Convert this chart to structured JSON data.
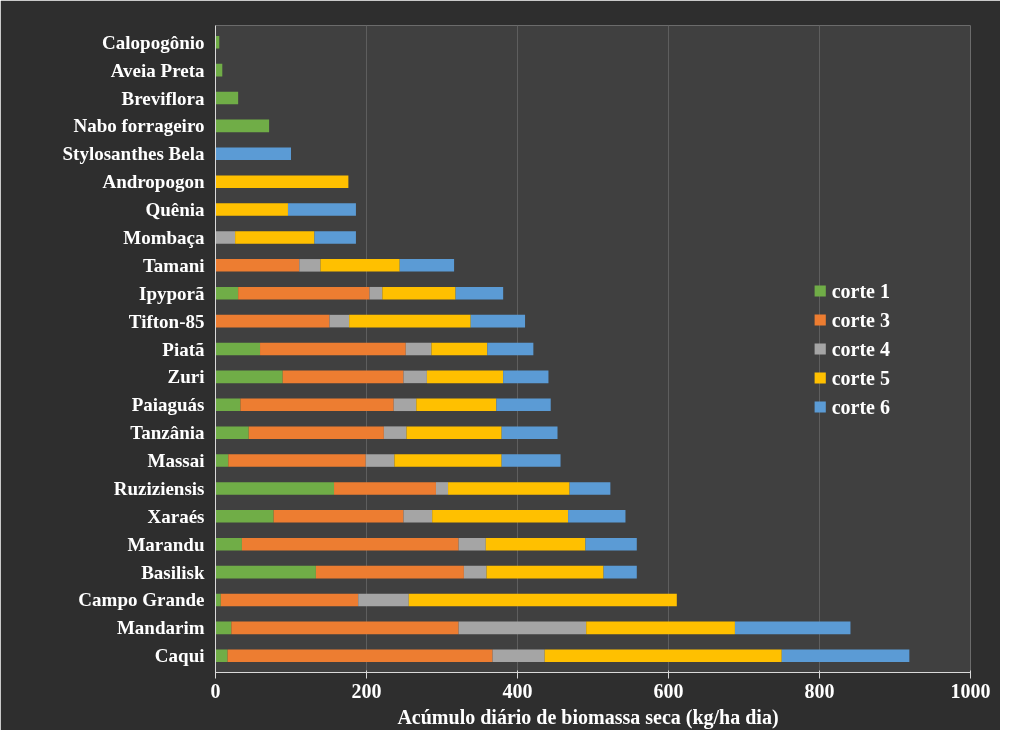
{
  "chart_data": {
    "type": "bar",
    "orientation": "horizontal",
    "stacked": true,
    "xlabel": "Acúmulo  diário  de biomassa seca (kg/ha dia)",
    "categories": [
      "Calopogônio",
      "Aveia Preta",
      "Breviflora",
      "Nabo forrageiro",
      "Stylosanthes Bela",
      "Andropogon",
      "Quênia",
      "Mombaça",
      "Tamani",
      "Ipyporã",
      "Tifton-85",
      "Piatã",
      "Zuri",
      "Paiaguás",
      "Tanzânia",
      "Massai",
      "Ruziziensis",
      "Xaraés",
      "Marandu",
      "Basilisk",
      "Campo Grande",
      "Mandarim",
      "Caqui"
    ],
    "series": [
      {
        "name": "corte 1",
        "color": "#70ad47",
        "values": [
          5,
          9,
          30,
          71,
          null,
          null,
          null,
          null,
          null,
          30,
          null,
          59,
          89,
          33,
          44,
          17,
          157,
          77,
          35,
          133,
          7,
          21,
          16
        ]
      },
      {
        "name": "corte 3",
        "color": "#ed7d31",
        "values": [
          null,
          null,
          null,
          null,
          null,
          null,
          null,
          null,
          111,
          174,
          151,
          193,
          160,
          203,
          179,
          182,
          135,
          172,
          287,
          196,
          182,
          301,
          351
        ]
      },
      {
        "name": "corte 4",
        "color": "#a5a5a5",
        "values": [
          null,
          null,
          null,
          null,
          null,
          null,
          null,
          26,
          28,
          17,
          26,
          34,
          31,
          30,
          30,
          38,
          16,
          38,
          36,
          30,
          67,
          169,
          69
        ]
      },
      {
        "name": "corte 5",
        "color": "#ffc000",
        "values": [
          null,
          null,
          null,
          null,
          null,
          176,
          96,
          105,
          105,
          97,
          161,
          74,
          101,
          106,
          126,
          142,
          161,
          180,
          132,
          155,
          355,
          197,
          314
        ]
      },
      {
        "name": "corte 6",
        "color": "#5b9bd5",
        "values": [
          null,
          null,
          null,
          null,
          100,
          null,
          90,
          55,
          72,
          63,
          72,
          61,
          60,
          72,
          74,
          78,
          54,
          76,
          68,
          44,
          null,
          153,
          169
        ]
      }
    ],
    "xlim": [
      0,
      1000
    ],
    "xticks": [
      0,
      200,
      400,
      600,
      800,
      1000
    ],
    "grid": "x",
    "legend": "right"
  }
}
